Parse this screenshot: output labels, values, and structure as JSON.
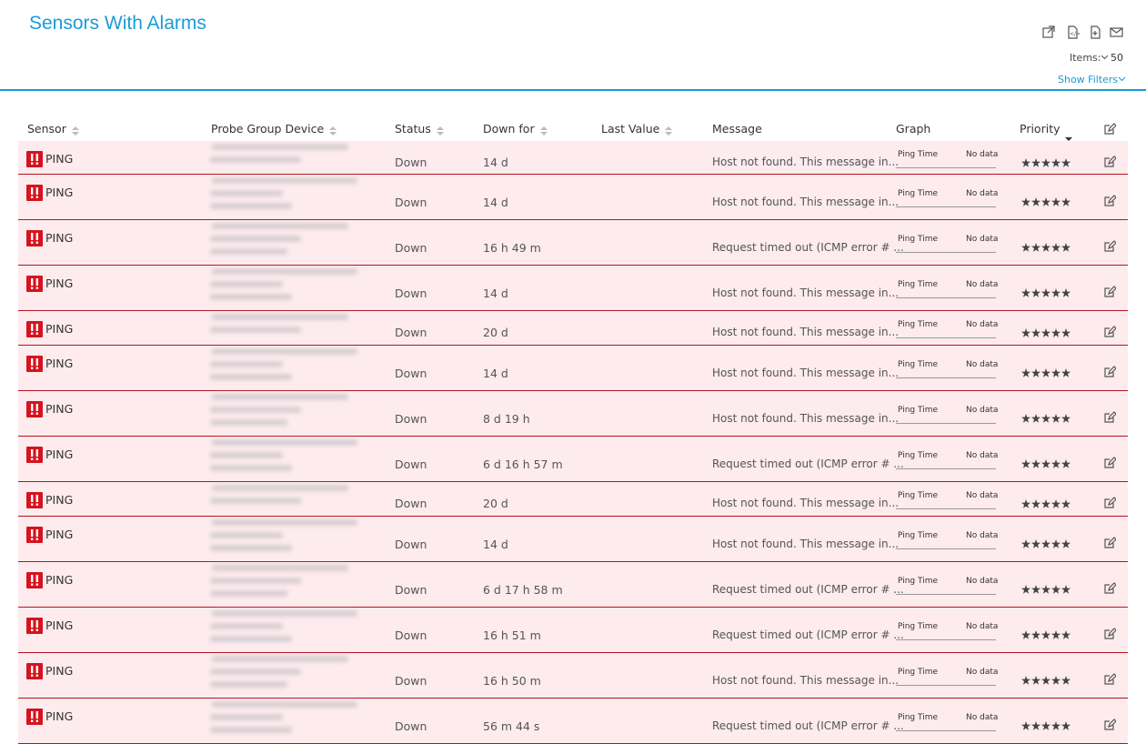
{
  "header": {
    "title": "Sensors With Alarms",
    "items_label": "Items:",
    "items_value": "50",
    "show_filters": "Show Filters"
  },
  "table": {
    "columns": [
      "Sensor",
      "Probe Group Device",
      "Status",
      "Down for",
      "Last Value",
      "Message",
      "Graph",
      "Priority"
    ],
    "rows": [
      {
        "sensor": "PING",
        "status": "Down",
        "down_for": "14 d",
        "message": "Host not found. This message in...",
        "graph_label": "Ping Time",
        "graph_value": "No data"
      },
      {
        "sensor": "PING",
        "status": "Down",
        "down_for": "14 d",
        "message": "Host not found. This message in...",
        "graph_label": "Ping Time",
        "graph_value": "No data"
      },
      {
        "sensor": "PING",
        "status": "Down",
        "down_for": "16 h 49 m",
        "message": "Request timed out (ICMP error # ...",
        "graph_label": "Ping Time",
        "graph_value": "No data"
      },
      {
        "sensor": "PING",
        "status": "Down",
        "down_for": "14 d",
        "message": "Host not found. This message in...",
        "graph_label": "Ping Time",
        "graph_value": "No data"
      },
      {
        "sensor": "PING",
        "status": "Down",
        "down_for": "20 d",
        "message": "Host not found. This message in...",
        "graph_label": "Ping Time",
        "graph_value": "No data"
      },
      {
        "sensor": "PING",
        "status": "Down",
        "down_for": "14 d",
        "message": "Host not found. This message in...",
        "graph_label": "Ping Time",
        "graph_value": "No data"
      },
      {
        "sensor": "PING",
        "status": "Down",
        "down_for": "8 d 19 h",
        "message": "Host not found. This message in...",
        "graph_label": "Ping Time",
        "graph_value": "No data"
      },
      {
        "sensor": "PING",
        "status": "Down",
        "down_for": "6 d 16 h 57 m",
        "message": "Request timed out (ICMP error # ...",
        "graph_label": "Ping Time",
        "graph_value": "No data"
      },
      {
        "sensor": "PING",
        "status": "Down",
        "down_for": "20 d",
        "message": "Host not found. This message in...",
        "graph_label": "Ping Time",
        "graph_value": "No data"
      },
      {
        "sensor": "PING",
        "status": "Down",
        "down_for": "14 d",
        "message": "Host not found. This message in...",
        "graph_label": "Ping Time",
        "graph_value": "No data"
      },
      {
        "sensor": "PING",
        "status": "Down",
        "down_for": "6 d 17 h 58 m",
        "message": "Request timed out (ICMP error # ...",
        "graph_label": "Ping Time",
        "graph_value": "No data"
      },
      {
        "sensor": "PING",
        "status": "Down",
        "down_for": "16 h 51 m",
        "message": "Request timed out (ICMP error # ...",
        "graph_label": "Ping Time",
        "graph_value": "No data"
      },
      {
        "sensor": "PING",
        "status": "Down",
        "down_for": "16 h 50 m",
        "message": "Host not found. This message in...",
        "graph_label": "Ping Time",
        "graph_value": "No data"
      },
      {
        "sensor": "PING",
        "status": "Down",
        "down_for": "56 m 44 s",
        "message": "Request timed out (ICMP error # ...",
        "graph_label": "Ping Time",
        "graph_value": "No data"
      }
    ]
  }
}
